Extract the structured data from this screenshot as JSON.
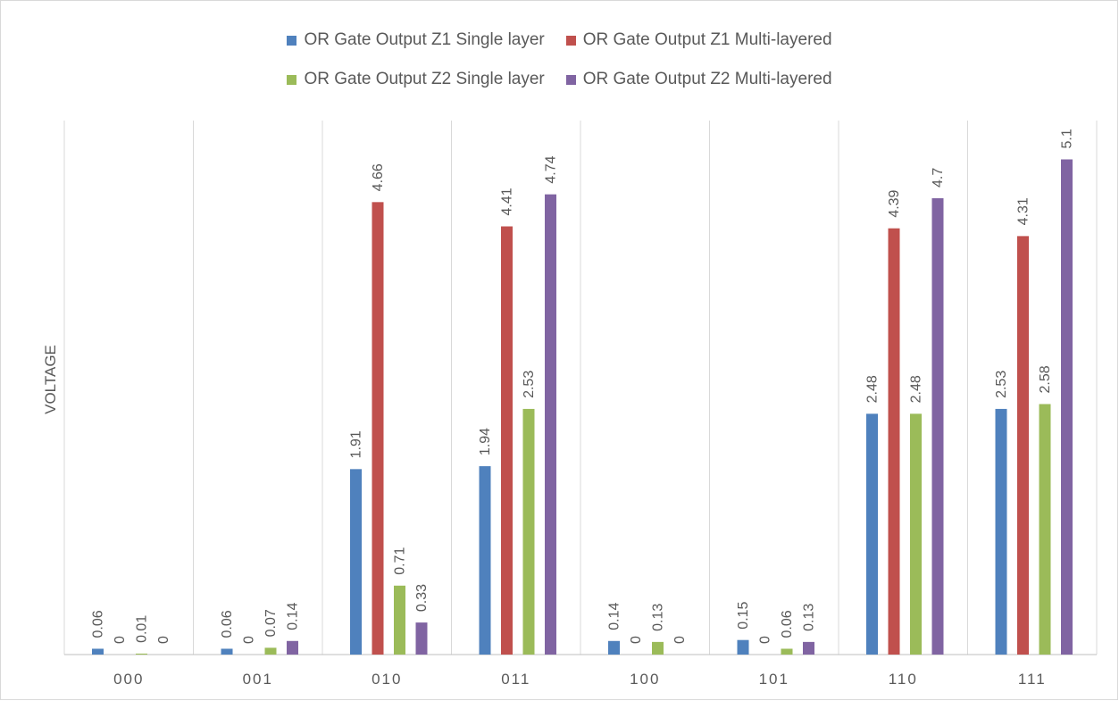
{
  "chart_data": {
    "type": "bar",
    "title": "",
    "xlabel": "",
    "ylabel": "VOLTAGE",
    "ylim": [
      0,
      5.5
    ],
    "grid": "vertical separators between categories",
    "legend_position": "top",
    "categories": [
      "000",
      "001",
      "010",
      "011",
      "100",
      "101",
      "110",
      "111"
    ],
    "series": [
      {
        "name": "OR Gate Output Z1 Single layer",
        "color": "#4f81bd",
        "values": [
          0.06,
          0.06,
          1.91,
          1.94,
          0.14,
          0.15,
          2.48,
          2.53
        ],
        "labels": [
          "0.06",
          "0.06",
          "1.91",
          "1.94",
          "0.14",
          "0.15",
          "2.48",
          "2.53"
        ]
      },
      {
        "name": "OR Gate Output Z1 Multi-layered",
        "color": "#c0504d",
        "values": [
          0,
          0,
          4.66,
          4.41,
          0,
          0,
          4.39,
          4.31
        ],
        "labels": [
          "0",
          "0",
          "4.66",
          "4.41",
          "0",
          "0",
          "4.39",
          "4.31"
        ]
      },
      {
        "name": "OR Gate Output Z2 Single layer",
        "color": "#9bbb59",
        "values": [
          0.01,
          0.07,
          0.71,
          2.53,
          0.13,
          0.06,
          2.48,
          2.58
        ],
        "labels": [
          "0.01",
          "0.07",
          "0.71",
          "2.53",
          "0.13",
          "0.06",
          "2.48",
          "2.58"
        ]
      },
      {
        "name": "OR Gate Output Z2 Multi-layered",
        "color": "#8064a2",
        "values": [
          0,
          0.14,
          0.33,
          4.74,
          0,
          0.13,
          4.7,
          5.1
        ],
        "labels": [
          "0",
          "0.14",
          "0.33",
          "4.74",
          "0",
          "0.13",
          "4.7",
          "5.1"
        ]
      }
    ]
  }
}
